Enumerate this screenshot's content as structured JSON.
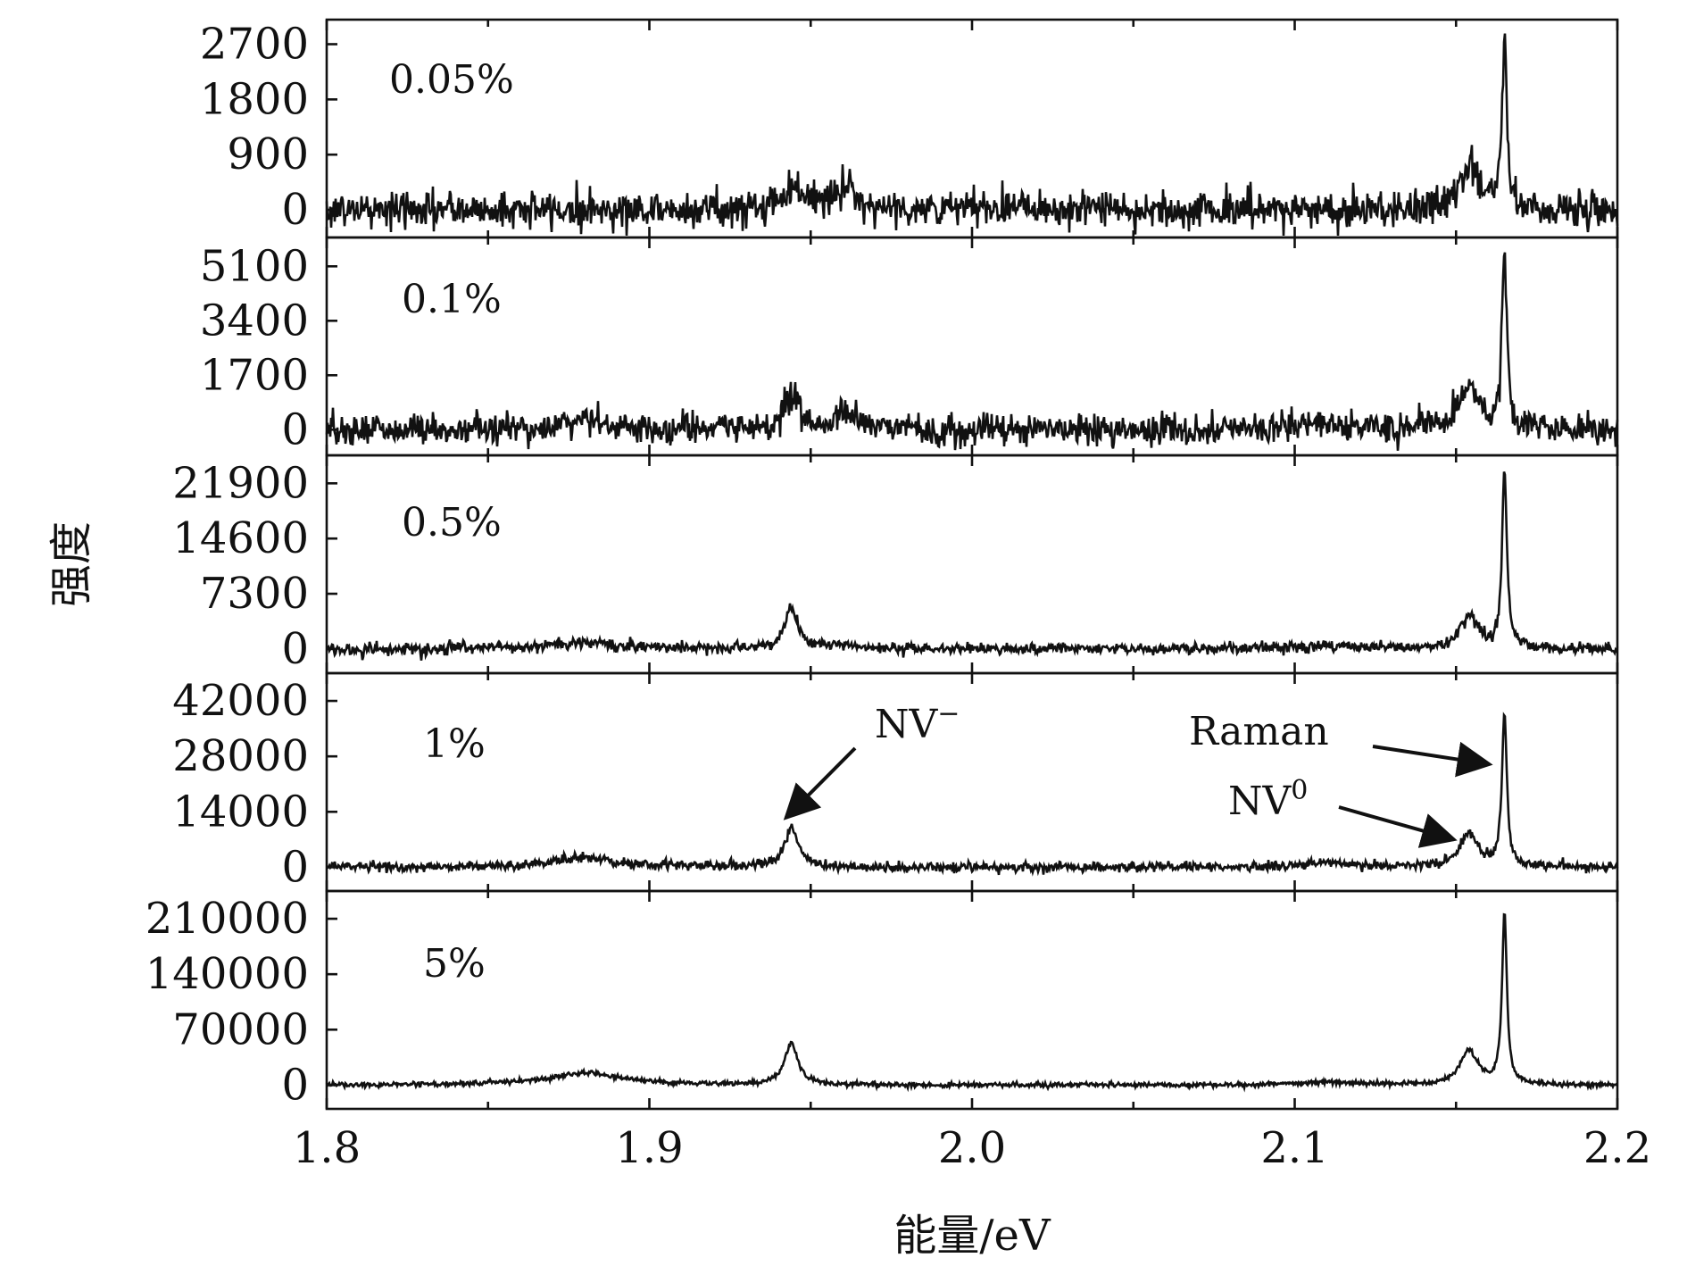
{
  "chart_data": {
    "type": "line",
    "xlabel": "能量/eV",
    "ylabel": "强度",
    "xlim": [
      1.8,
      2.2
    ],
    "x_ticks": [
      "1.8",
      "1.9",
      "2.0",
      "2.1",
      "2.2"
    ],
    "x_tick_values": [
      1.8,
      1.9,
      2.0,
      2.1,
      2.2
    ],
    "legend": "none",
    "grid": false,
    "line_color": "#111111",
    "panels": [
      {
        "label": "0.05%",
        "ylim": [
          -450,
          3100
        ],
        "y_ticks": [
          0,
          900,
          1800,
          2700
        ],
        "baseline": 0,
        "noise": 150,
        "peaks": [
          {
            "name": "Raman",
            "x": 2.165,
            "height": 2650,
            "width": 0.0009
          },
          {
            "name": "NV0",
            "x": 2.154,
            "height": 700,
            "width": 0.0035
          },
          {
            "name": "NV-",
            "x": 1.945,
            "height": 380,
            "width": 0.004
          },
          {
            "x": 1.961,
            "height": 360,
            "width": 0.004
          },
          {
            "x": 2.015,
            "height": 120,
            "width": 0.005
          }
        ]
      },
      {
        "label": "0.1%",
        "ylim": [
          -800,
          6000
        ],
        "y_ticks": [
          0,
          1700,
          3400,
          5100
        ],
        "baseline": 0,
        "noise": 240,
        "peaks": [
          {
            "name": "Raman",
            "x": 2.165,
            "height": 5500,
            "width": 0.0009
          },
          {
            "name": "NV0",
            "x": 2.154,
            "height": 1300,
            "width": 0.0035
          },
          {
            "name": "NV-",
            "x": 1.944,
            "height": 900,
            "width": 0.003
          },
          {
            "x": 1.961,
            "height": 400,
            "width": 0.005
          },
          {
            "x": 1.88,
            "height": 250,
            "width": 0.01
          },
          {
            "x": 2.11,
            "height": 200,
            "width": 0.01
          }
        ]
      },
      {
        "label": "0.5%",
        "ylim": [
          -3200,
          25600
        ],
        "y_ticks": [
          0,
          7300,
          14600,
          21900
        ],
        "baseline": 0,
        "noise": 380,
        "peaks": [
          {
            "name": "Raman",
            "x": 2.165,
            "height": 23500,
            "width": 0.0009
          },
          {
            "name": "NV0",
            "x": 2.154,
            "height": 4300,
            "width": 0.0035
          },
          {
            "name": "NV-",
            "x": 1.944,
            "height": 5200,
            "width": 0.0025
          },
          {
            "x": 1.88,
            "height": 900,
            "width": 0.012
          },
          {
            "x": 1.96,
            "height": 500,
            "width": 0.005
          },
          {
            "x": 2.11,
            "height": 400,
            "width": 0.01
          }
        ]
      },
      {
        "label": "1%",
        "ylim": [
          -6000,
          49000
        ],
        "y_ticks": [
          0,
          14000,
          28000,
          42000
        ],
        "baseline": 0,
        "noise": 600,
        "peaks": [
          {
            "name": "Raman",
            "x": 2.165,
            "height": 39000,
            "width": 0.0009
          },
          {
            "name": "NV0",
            "x": 2.154,
            "height": 8500,
            "width": 0.0035
          },
          {
            "name": "NV-",
            "x": 1.944,
            "height": 10000,
            "width": 0.0025
          },
          {
            "x": 1.88,
            "height": 2500,
            "width": 0.012
          },
          {
            "x": 2.11,
            "height": 1000,
            "width": 0.01
          }
        ]
      },
      {
        "label": "5%",
        "ylim": [
          -30000,
          245000
        ],
        "y_ticks": [
          0,
          70000,
          140000,
          210000
        ],
        "baseline": 0,
        "noise": 1500,
        "peaks": [
          {
            "name": "Raman",
            "x": 2.165,
            "height": 215000,
            "width": 0.0009
          },
          {
            "name": "NV0",
            "x": 2.154,
            "height": 42000,
            "width": 0.0035
          },
          {
            "name": "NV-",
            "x": 1.944,
            "height": 52000,
            "width": 0.0025
          },
          {
            "x": 1.88,
            "height": 15000,
            "width": 0.014
          },
          {
            "x": 2.11,
            "height": 4000,
            "width": 0.01
          }
        ]
      }
    ],
    "annotations": [
      {
        "text": "NV",
        "sup": "−",
        "panel": 3,
        "target": {
          "x": 1.944,
          "y": 12500
        }
      },
      {
        "text": "Raman",
        "sup": "",
        "panel": 3,
        "target": {
          "x": 2.162,
          "y": 26000
        }
      },
      {
        "text": "NV",
        "sup": "0",
        "panel": 3,
        "target": {
          "x": 2.151,
          "y": 7000
        }
      }
    ]
  }
}
